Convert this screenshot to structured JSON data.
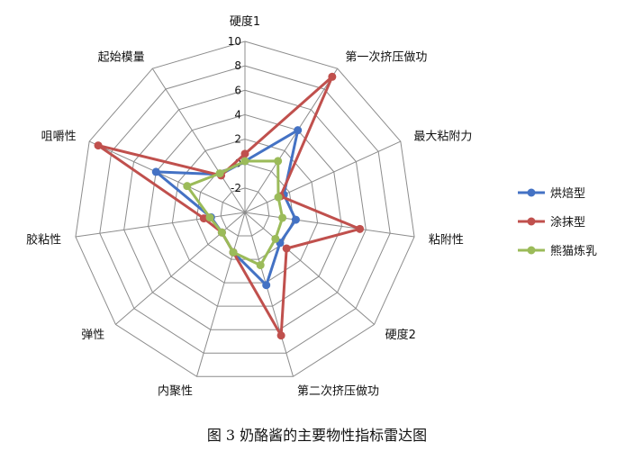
{
  "chart_data": {
    "type": "radar",
    "title": "",
    "axes": [
      "硬度1",
      "第一次挤压做功",
      "最大粘附力",
      "粘附性",
      "硬度2",
      "第二次挤压做功",
      "内聚性",
      "弹性",
      "胶粘性",
      "咀嚼性",
      "起始模量"
    ],
    "range": [
      -4,
      10
    ],
    "ticks": [
      -2,
      0,
      2,
      4,
      6,
      8,
      10
    ],
    "grid": true,
    "legend_position": "right",
    "series": [
      {
        "name": "烘焙型",
        "color": "#4472C4",
        "values": [
          0.2,
          4.0,
          -0.5,
          0.2,
          -0.2,
          2.2,
          -0.6,
          -1.5,
          -1.2,
          4.0,
          -0.3
        ]
      },
      {
        "name": "涂抹型",
        "color": "#C0504D",
        "values": [
          0.8,
          9.2,
          -0.8,
          5.5,
          0.5,
          6.5,
          -0.6,
          -1.5,
          -0.6,
          9.2,
          -0.4
        ]
      },
      {
        "name": "熊猫炼乳",
        "color": "#9BBB59",
        "values": [
          0.2,
          1.0,
          -1.0,
          -0.9,
          -0.7,
          0.5,
          -0.6,
          -1.5,
          -1.1,
          1.2,
          -0.2
        ]
      }
    ]
  },
  "caption": "图 3  奶酪酱的主要物性指标雷达图"
}
